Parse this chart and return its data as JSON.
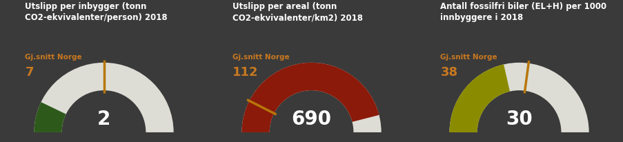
{
  "background_color": "#3a3a3a",
  "panel_bg": "#484848",
  "gauges": [
    {
      "title": "Utslipp per inbygger (tonn\nCO2-ekvivalenter/person) 2018",
      "avg_label": "Gj.snitt Norge",
      "avg_value": 7,
      "value": 2,
      "max_value": 14,
      "arc_color": "#ddddd5",
      "fill_color": "#2d5a1b",
      "needle_color": "#b8760a",
      "text_color": "#ffffff",
      "avg_text_color": "#c87820",
      "value_color": "#ffffff"
    },
    {
      "title": "Utslipp per areal (tonn\nCO2-ekvivalenter/km2) 2018",
      "avg_label": "Gj.snitt Norge",
      "avg_value": 112,
      "value": 690,
      "max_value": 750,
      "arc_color": "#ddddd5",
      "fill_color": "#8b1a0a",
      "needle_color": "#b8760a",
      "text_color": "#ffffff",
      "avg_text_color": "#c87820",
      "value_color": "#ffffff"
    },
    {
      "title": "Antall fossilfri biler (EL+H) per 1000\ninnbyggere i 2018",
      "avg_label": "Gj.snitt Norge",
      "avg_value": 38,
      "value": 30,
      "max_value": 70,
      "arc_color": "#ddddd5",
      "fill_color": "#8b8b00",
      "needle_color": "#b8760a",
      "text_color": "#ffffff",
      "avg_text_color": "#c87820",
      "value_color": "#ffffff"
    }
  ],
  "title_fontsize": 8.5,
  "avg_label_fontsize": 7.5,
  "avg_num_fontsize": 13,
  "value_fontsize": 20
}
